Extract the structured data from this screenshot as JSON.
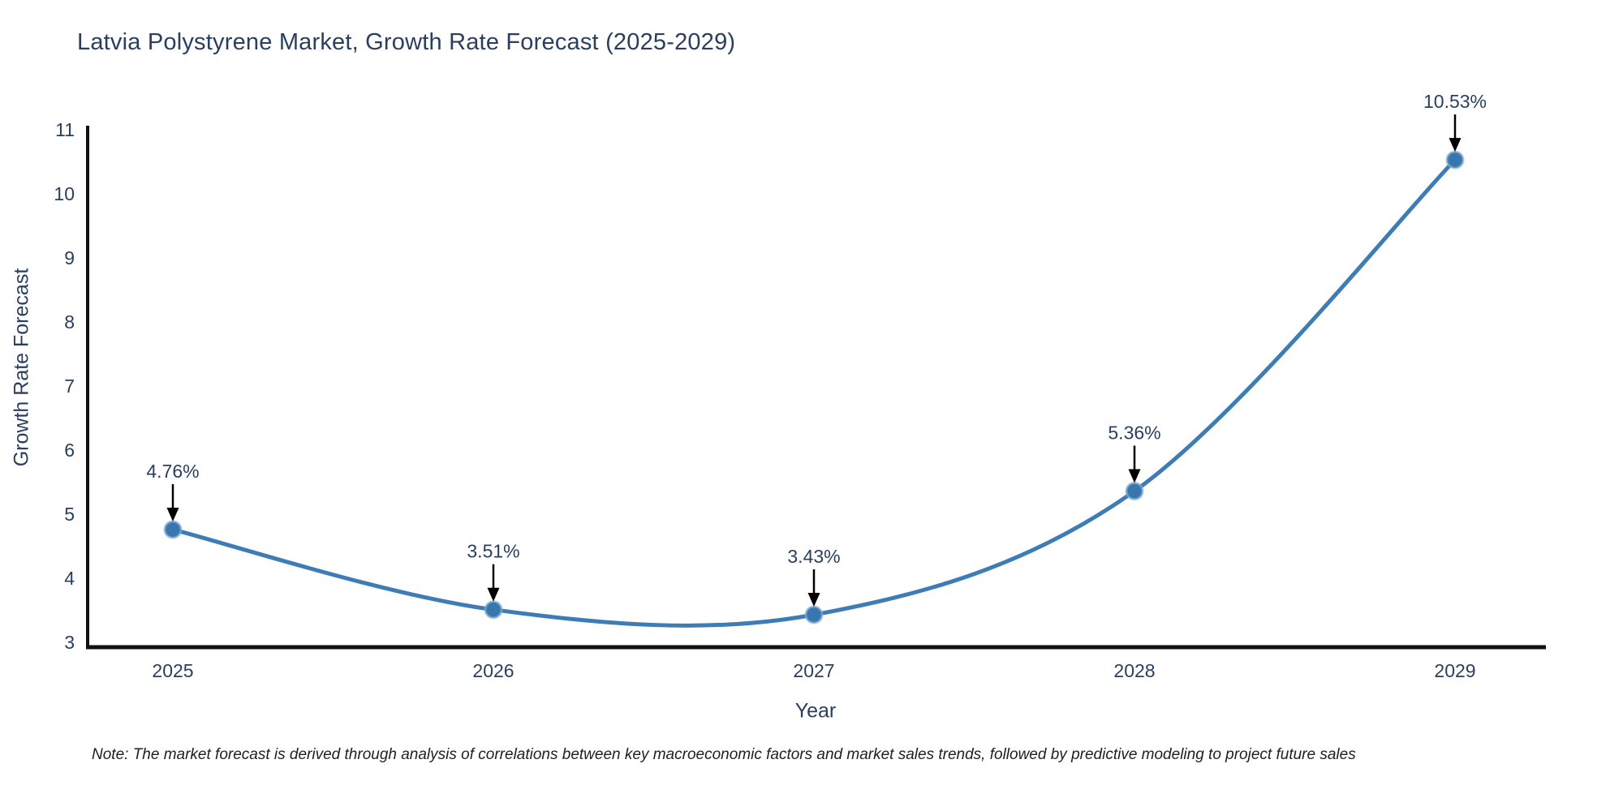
{
  "title": "Latvia Polystyrene Market, Growth Rate Forecast (2025-2029)",
  "note": "Note: The market forecast is derived through analysis of correlations between key macroeconomic factors and market sales trends, followed by predictive modeling to project future sales",
  "chart_data": {
    "type": "line",
    "title": "Latvia Polystyrene Market, Growth Rate Forecast (2025-2029)",
    "xlabel": "Year",
    "ylabel": "Growth Rate Forecast",
    "categories": [
      "2025",
      "2026",
      "2027",
      "2028",
      "2029"
    ],
    "values": [
      4.76,
      3.51,
      3.43,
      5.36,
      10.53
    ],
    "point_labels": [
      "4.76%",
      "3.51%",
      "3.43%",
      "5.36%",
      "10.53%"
    ],
    "ylim": [
      3,
      11
    ],
    "yticks": [
      3,
      4,
      5,
      6,
      7,
      8,
      9,
      10,
      11
    ],
    "line_shape": "spline",
    "grid": false,
    "legend": "none",
    "colors": {
      "line": "#3e7cb5",
      "marker_fill": "#3876ad",
      "marker_edge": "#7fadd4",
      "arrow": "#000000",
      "axis_line": "#111111",
      "title_text": "#2a3f5f",
      "tick_text": "#2a3f5f",
      "note_text": "#1f1f1f",
      "background": "#ffffff"
    }
  }
}
